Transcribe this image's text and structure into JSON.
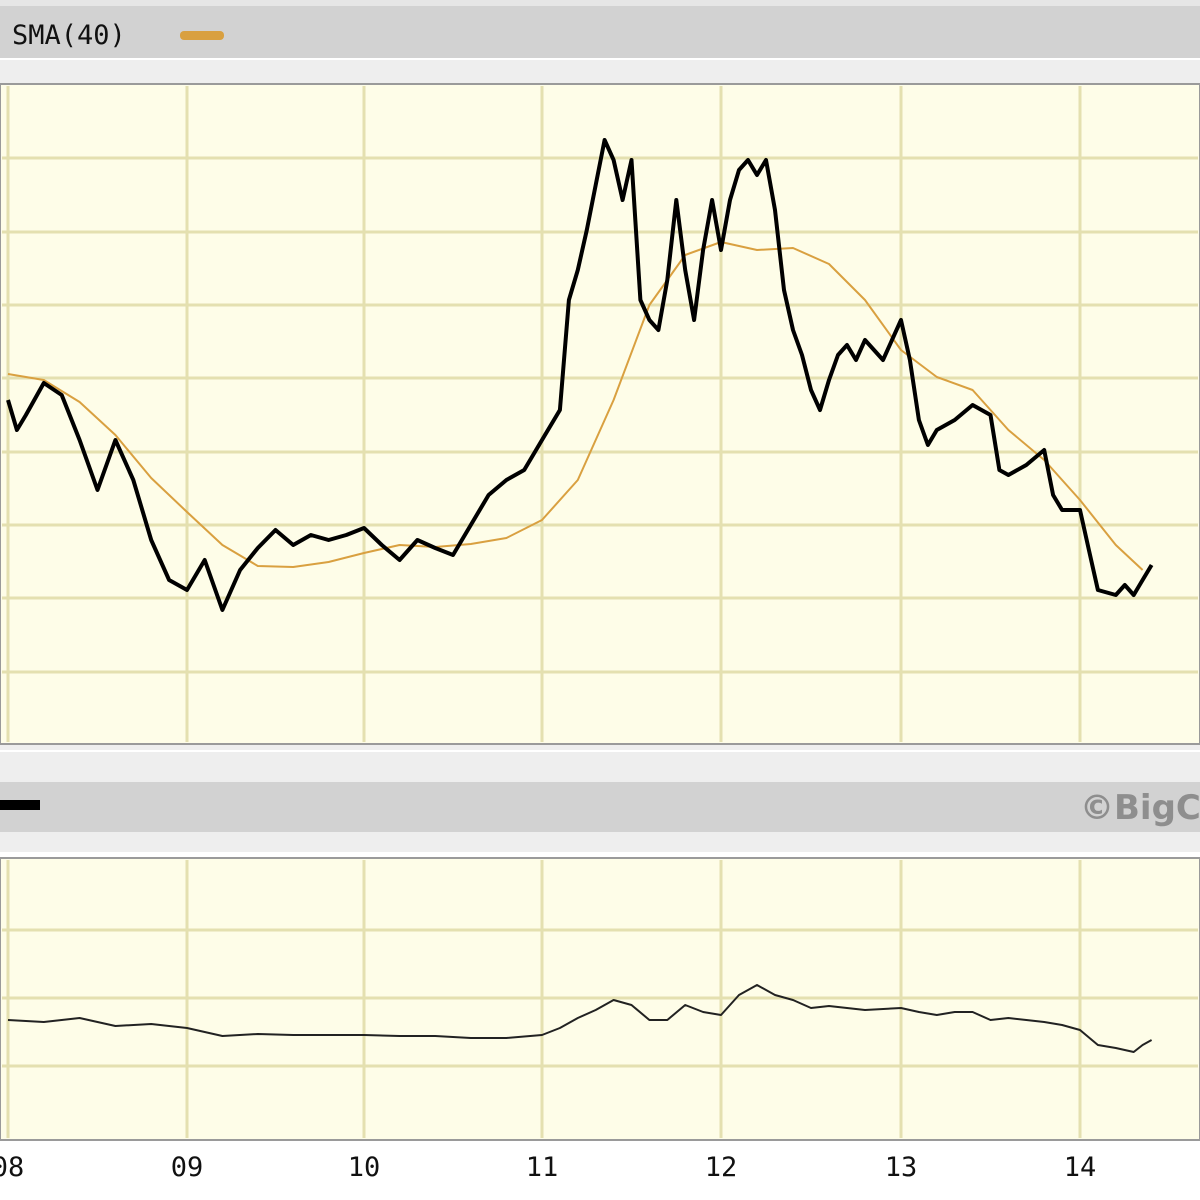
{
  "colors": {
    "panel_bg": "#fefde8",
    "header_bar": "#cfcfcf",
    "grid": "#e4e0b0",
    "price_line": "#000000",
    "sma_line": "#d9a040",
    "lower_line": "#222222"
  },
  "legend": {
    "sma_label": "SMA(40)",
    "sma_swatch_color": "#d9a040"
  },
  "copyright_text": "©BigC",
  "chart_data": {
    "type": "line",
    "x_labels": [
      "08",
      "09",
      "10",
      "11",
      "12",
      "13",
      "14"
    ],
    "grid": true,
    "panels": [
      {
        "name": "price",
        "series": [
          {
            "name": "SMA(40)",
            "color": "#d9a040",
            "points": [
              [
                2008.0,
                374
              ],
              [
                2008.2,
                380
              ],
              [
                2008.4,
                402
              ],
              [
                2008.6,
                435
              ],
              [
                2008.8,
                478
              ],
              [
                2009.0,
                512
              ],
              [
                2009.2,
                545
              ],
              [
                2009.4,
                566
              ],
              [
                2009.6,
                567
              ],
              [
                2009.8,
                562
              ],
              [
                2010.0,
                553
              ],
              [
                2010.2,
                545
              ],
              [
                2010.4,
                547
              ],
              [
                2010.6,
                544
              ],
              [
                2010.8,
                538
              ],
              [
                2011.0,
                520
              ],
              [
                2011.2,
                480
              ],
              [
                2011.4,
                400
              ],
              [
                2011.6,
                305
              ],
              [
                2011.8,
                255
              ],
              [
                2012.0,
                242
              ],
              [
                2012.2,
                250
              ],
              [
                2012.4,
                248
              ],
              [
                2012.6,
                264
              ],
              [
                2012.8,
                300
              ],
              [
                2013.0,
                350
              ],
              [
                2013.2,
                377
              ],
              [
                2013.4,
                390
              ],
              [
                2013.6,
                430
              ],
              [
                2013.8,
                460
              ],
              [
                2014.0,
                500
              ],
              [
                2014.2,
                545
              ],
              [
                2014.35,
                570
              ]
            ]
          },
          {
            "name": "",
            "color": "#000000",
            "points": [
              [
                2008.0,
                400
              ],
              [
                2008.05,
                430
              ],
              [
                2008.1,
                415
              ],
              [
                2008.2,
                383
              ],
              [
                2008.3,
                395
              ],
              [
                2008.4,
                440
              ],
              [
                2008.5,
                490
              ],
              [
                2008.6,
                440
              ],
              [
                2008.7,
                480
              ],
              [
                2008.8,
                540
              ],
              [
                2008.9,
                580
              ],
              [
                2009.0,
                590
              ],
              [
                2009.1,
                560
              ],
              [
                2009.2,
                610
              ],
              [
                2009.3,
                570
              ],
              [
                2009.4,
                548
              ],
              [
                2009.5,
                530
              ],
              [
                2009.6,
                545
              ],
              [
                2009.7,
                535
              ],
              [
                2009.8,
                540
              ],
              [
                2009.9,
                535
              ],
              [
                2010.0,
                528
              ],
              [
                2010.1,
                545
              ],
              [
                2010.2,
                560
              ],
              [
                2010.3,
                540
              ],
              [
                2010.4,
                548
              ],
              [
                2010.5,
                555
              ],
              [
                2010.6,
                525
              ],
              [
                2010.7,
                495
              ],
              [
                2010.8,
                480
              ],
              [
                2010.9,
                470
              ],
              [
                2011.0,
                440
              ],
              [
                2011.1,
                410
              ],
              [
                2011.15,
                300
              ],
              [
                2011.2,
                270
              ],
              [
                2011.25,
                230
              ],
              [
                2011.3,
                185
              ],
              [
                2011.35,
                140
              ],
              [
                2011.4,
                160
              ],
              [
                2011.45,
                200
              ],
              [
                2011.5,
                160
              ],
              [
                2011.55,
                300
              ],
              [
                2011.6,
                320
              ],
              [
                2011.65,
                330
              ],
              [
                2011.7,
                280
              ],
              [
                2011.75,
                200
              ],
              [
                2011.8,
                270
              ],
              [
                2011.85,
                320
              ],
              [
                2011.9,
                250
              ],
              [
                2011.95,
                200
              ],
              [
                2012.0,
                250
              ],
              [
                2012.05,
                200
              ],
              [
                2012.1,
                170
              ],
              [
                2012.15,
                160
              ],
              [
                2012.2,
                175
              ],
              [
                2012.25,
                160
              ],
              [
                2012.3,
                210
              ],
              [
                2012.35,
                290
              ],
              [
                2012.4,
                330
              ],
              [
                2012.45,
                355
              ],
              [
                2012.5,
                390
              ],
              [
                2012.55,
                410
              ],
              [
                2012.6,
                380
              ],
              [
                2012.65,
                355
              ],
              [
                2012.7,
                345
              ],
              [
                2012.75,
                360
              ],
              [
                2012.8,
                340
              ],
              [
                2012.9,
                360
              ],
              [
                2013.0,
                320
              ],
              [
                2013.05,
                360
              ],
              [
                2013.1,
                420
              ],
              [
                2013.15,
                445
              ],
              [
                2013.2,
                430
              ],
              [
                2013.3,
                420
              ],
              [
                2013.4,
                405
              ],
              [
                2013.5,
                415
              ],
              [
                2013.55,
                470
              ],
              [
                2013.6,
                475
              ],
              [
                2013.7,
                465
              ],
              [
                2013.8,
                450
              ],
              [
                2013.85,
                495
              ],
              [
                2013.9,
                510
              ],
              [
                2014.0,
                510
              ],
              [
                2014.05,
                550
              ],
              [
                2014.1,
                590
              ],
              [
                2014.2,
                595
              ],
              [
                2014.25,
                585
              ],
              [
                2014.3,
                595
              ],
              [
                2014.35,
                580
              ],
              [
                2014.4,
                565
              ]
            ]
          }
        ]
      },
      {
        "name": "lower",
        "series": [
          {
            "name": "",
            "color": "#222222",
            "points": [
              [
                2008.0,
                1020
              ],
              [
                2008.2,
                1022
              ],
              [
                2008.4,
                1018
              ],
              [
                2008.6,
                1026
              ],
              [
                2008.8,
                1024
              ],
              [
                2009.0,
                1028
              ],
              [
                2009.2,
                1036
              ],
              [
                2009.4,
                1034
              ],
              [
                2009.6,
                1035
              ],
              [
                2009.8,
                1035
              ],
              [
                2010.0,
                1035
              ],
              [
                2010.2,
                1036
              ],
              [
                2010.4,
                1036
              ],
              [
                2010.6,
                1038
              ],
              [
                2010.8,
                1038
              ],
              [
                2011.0,
                1035
              ],
              [
                2011.1,
                1028
              ],
              [
                2011.2,
                1018
              ],
              [
                2011.3,
                1010
              ],
              [
                2011.4,
                1000
              ],
              [
                2011.5,
                1005
              ],
              [
                2011.6,
                1020
              ],
              [
                2011.7,
                1020
              ],
              [
                2011.8,
                1005
              ],
              [
                2011.9,
                1012
              ],
              [
                2012.0,
                1015
              ],
              [
                2012.1,
                995
              ],
              [
                2012.2,
                985
              ],
              [
                2012.3,
                995
              ],
              [
                2012.4,
                1000
              ],
              [
                2012.5,
                1008
              ],
              [
                2012.6,
                1006
              ],
              [
                2012.8,
                1010
              ],
              [
                2013.0,
                1008
              ],
              [
                2013.1,
                1012
              ],
              [
                2013.2,
                1015
              ],
              [
                2013.3,
                1012
              ],
              [
                2013.4,
                1012
              ],
              [
                2013.5,
                1020
              ],
              [
                2013.6,
                1018
              ],
              [
                2013.7,
                1020
              ],
              [
                2013.8,
                1022
              ],
              [
                2013.9,
                1025
              ],
              [
                2014.0,
                1030
              ],
              [
                2014.1,
                1045
              ],
              [
                2014.2,
                1048
              ],
              [
                2014.3,
                1052
              ],
              [
                2014.35,
                1045
              ],
              [
                2014.4,
                1040
              ]
            ]
          }
        ]
      }
    ]
  }
}
